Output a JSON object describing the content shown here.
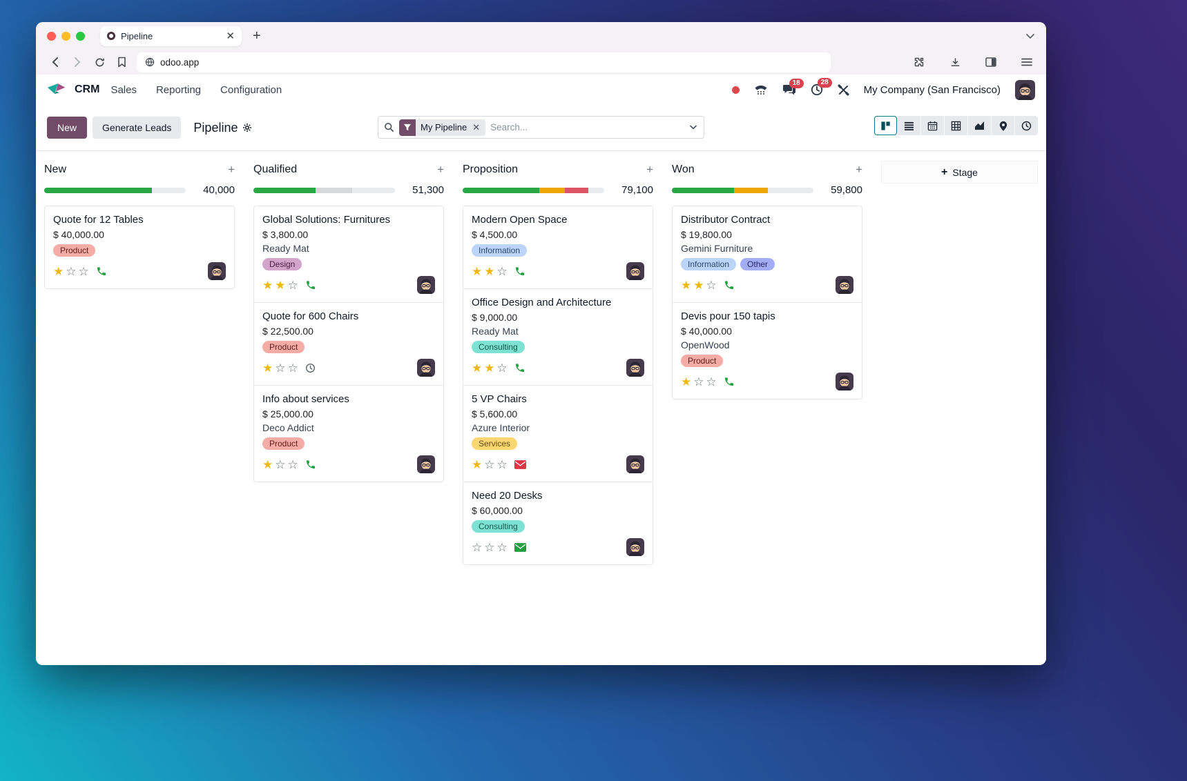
{
  "browser": {
    "tab": {
      "title": "Pipeline"
    },
    "url": "odoo.app",
    "tab_icons": [
      "favicon-ring",
      "close",
      "new-tab",
      "chevron-down"
    ],
    "toolbar_icons": [
      "back",
      "forward",
      "reload",
      "bookmark",
      "globe",
      "extensions-puzzle",
      "download",
      "sidebar",
      "menu"
    ]
  },
  "nav": {
    "app": "CRM",
    "menus": [
      {
        "label": "Sales"
      },
      {
        "label": "Reporting"
      },
      {
        "label": "Configuration"
      }
    ],
    "icon_names": [
      "presence-dot",
      "softphone",
      "messages",
      "activities",
      "tools"
    ],
    "messages_badge": "18",
    "activities_badge": "28",
    "company": "My Company (San Francisco)",
    "badge_color": "#d9434f"
  },
  "controls": {
    "new_label": "New",
    "generate_leads_label": "Generate Leads",
    "view_title": "Pipeline",
    "search_facet": "My Pipeline",
    "search_placeholder": "Search...",
    "views": [
      "kanban",
      "list",
      "calendar",
      "pivot",
      "graph",
      "map",
      "activity"
    ],
    "active_view": "kanban",
    "accent_color": "#714b67",
    "active_view_color": "#017e84"
  },
  "board": {
    "add_stage_label": "Stage",
    "track_color": "#e9ecef",
    "star_color": "#efb80e",
    "columns": [
      {
        "name": "New",
        "amount": "40,000",
        "progress": [
          {
            "color": "#28a745",
            "pct": 76
          }
        ],
        "cards": [
          {
            "title": "Quote for 12 Tables",
            "amount": "$ 40,000.00",
            "tags": [
              {
                "label": "Product",
                "bg": "#f5aca6",
                "fg": "#5f2120"
              }
            ],
            "stars": 1,
            "action_icon": "phone"
          }
        ]
      },
      {
        "name": "Qualified",
        "amount": "51,300",
        "progress": [
          {
            "color": "#28a745",
            "pct": 44
          },
          {
            "color": "#d6d9dc",
            "pct": 26
          }
        ],
        "cards": [
          {
            "title": "Global Solutions: Furnitures",
            "amount": "$ 3,800.00",
            "partner": "Ready Mat",
            "tags": [
              {
                "label": "Design",
                "bg": "#d3a4cb",
                "fg": "#45204a"
              }
            ],
            "stars": 2,
            "action_icon": "phone"
          },
          {
            "title": "Quote for 600 Chairs",
            "amount": "$ 22,500.00",
            "tags": [
              {
                "label": "Product",
                "bg": "#f5aca6",
                "fg": "#5f2120"
              }
            ],
            "stars": 1,
            "action_icon": "clock"
          },
          {
            "title": "Info about services",
            "amount": "$ 25,000.00",
            "partner": "Deco Addict",
            "tags": [
              {
                "label": "Product",
                "bg": "#f5aca6",
                "fg": "#5f2120"
              }
            ],
            "stars": 1,
            "action_icon": "phone"
          }
        ]
      },
      {
        "name": "Proposition",
        "amount": "79,100",
        "progress": [
          {
            "color": "#28a745",
            "pct": 54
          },
          {
            "color": "#eda405",
            "pct": 18
          },
          {
            "color": "#dc5567",
            "pct": 17
          }
        ],
        "cards": [
          {
            "title": "Modern Open Space",
            "amount": "$ 4,500.00",
            "tags": [
              {
                "label": "Information",
                "bg": "#bcd4f7",
                "fg": "#2c4870"
              }
            ],
            "stars": 2,
            "action_icon": "phone"
          },
          {
            "title": "Office Design and Architecture",
            "amount": "$ 9,000.00",
            "partner": "Ready Mat",
            "tags": [
              {
                "label": "Consulting",
                "bg": "#7de2d3",
                "fg": "#115849"
              }
            ],
            "stars": 2,
            "action_icon": "phone"
          },
          {
            "title": "5 VP Chairs",
            "amount": "$ 5,600.00",
            "partner": "Azure Interior",
            "tags": [
              {
                "label": "Services",
                "bg": "#fbd772",
                "fg": "#6b4b10"
              }
            ],
            "stars": 1,
            "action_icon": "envelope-red"
          },
          {
            "title": "Need 20 Desks",
            "amount": "$ 60,000.00",
            "tags": [
              {
                "label": "Consulting",
                "bg": "#7de2d3",
                "fg": "#115849"
              }
            ],
            "stars": 0,
            "action_icon": "envelope-green"
          }
        ]
      },
      {
        "name": "Won",
        "amount": "59,800",
        "progress": [
          {
            "color": "#28a745",
            "pct": 44
          },
          {
            "color": "#eda405",
            "pct": 24
          }
        ],
        "cards": [
          {
            "title": "Distributor Contract",
            "amount": "$ 19,800.00",
            "partner": "Gemini Furniture",
            "tags": [
              {
                "label": "Information",
                "bg": "#bcd4f7",
                "fg": "#2c4870"
              },
              {
                "label": "Other",
                "bg": "#a3adf4",
                "fg": "#252a67"
              }
            ],
            "stars": 2,
            "action_icon": "phone"
          },
          {
            "title": "Devis pour 150 tapis",
            "amount": "$ 40,000.00",
            "partner": "OpenWood",
            "tags": [
              {
                "label": "Product",
                "bg": "#f5aca6",
                "fg": "#5f2120"
              }
            ],
            "stars": 1,
            "action_icon": "phone"
          }
        ]
      }
    ]
  }
}
